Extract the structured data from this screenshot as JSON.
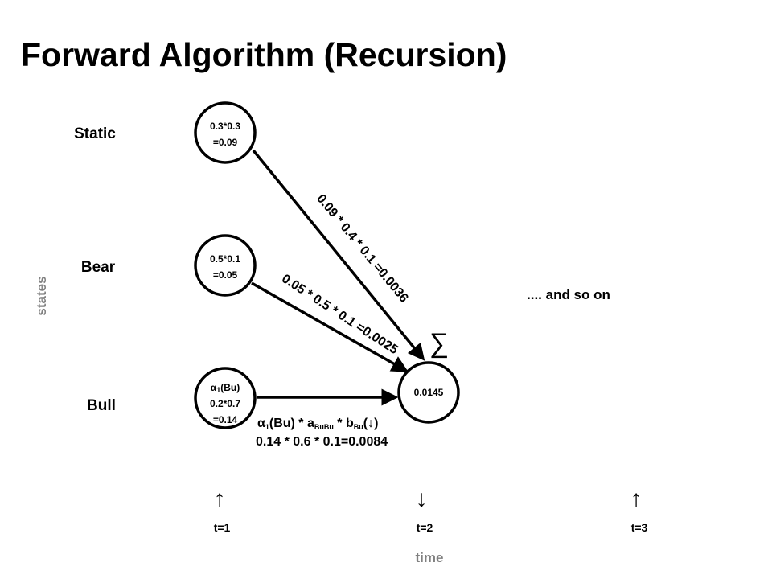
{
  "title": "Forward Algorithm (Recursion)",
  "axis_labels": {
    "states": "states",
    "time": "time"
  },
  "states": [
    "Static",
    "Bear",
    "Bull"
  ],
  "nodes": [
    {
      "lines": [
        "0.3*0.3",
        "=0.09"
      ]
    },
    {
      "lines": [
        "0.5*0.1",
        "=0.05"
      ]
    },
    {
      "alpha": [
        "α",
        "1",
        "(Bu)"
      ],
      "lines": [
        "0.2*0.7",
        "=0.14"
      ]
    },
    {
      "lines": [
        "0.0145"
      ]
    }
  ],
  "edges": [
    "0.09 * 0.4 * 0.1 =0.0036",
    "0.05 * 0.5 * 0.1 =0.0025"
  ],
  "formula": [
    "α",
    "1",
    "(Bu) * a",
    "BuBu",
    " * b",
    "Bu",
    "(↓)"
  ],
  "formula_value": "0.14 * 0.6 * 0.1=0.0084",
  "sum": "∑",
  "continuation": ".... and so on",
  "observations": [
    "↑",
    "↓",
    "↑"
  ],
  "times": [
    "t=1",
    "t=2",
    "t=3"
  ]
}
